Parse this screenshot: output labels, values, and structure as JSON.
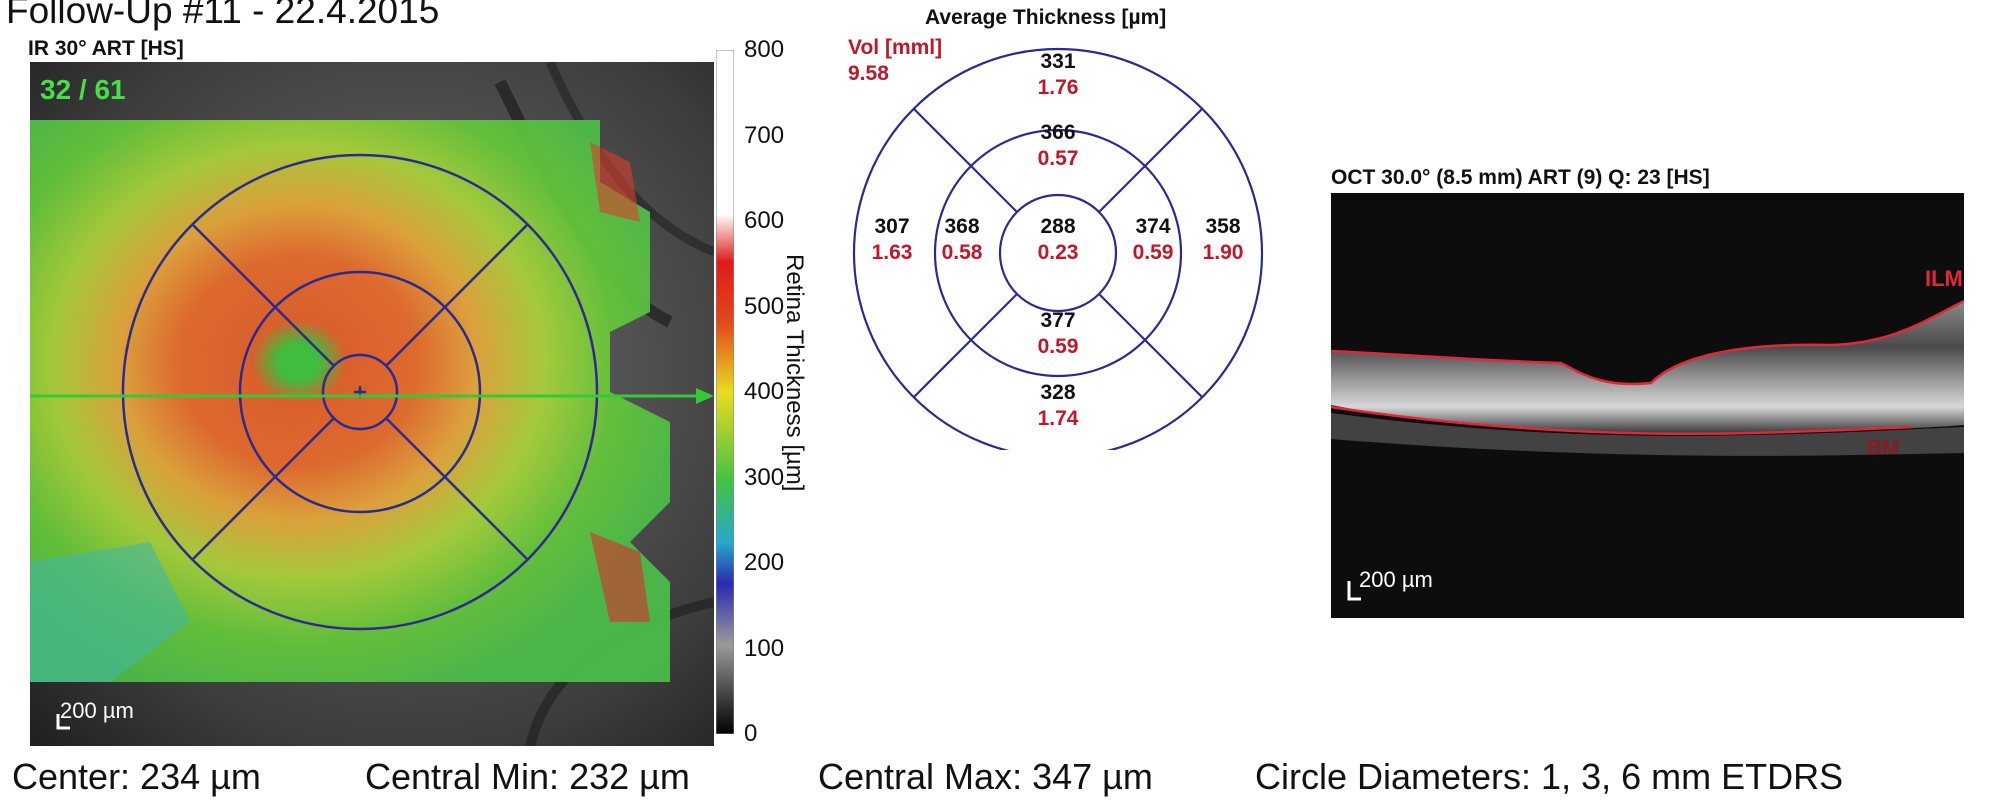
{
  "header": {
    "title": "Follow-Up #11 - 22.4.2015",
    "ir_label": "IR 30° ART [HS]",
    "scan_counter": "32 / 61",
    "ir_scale_bar": "200 µm"
  },
  "colorbar": {
    "axis_label": "Retina Thickness [µm]",
    "ticks": [
      "800",
      "700",
      "600",
      "500",
      "400",
      "300",
      "200",
      "100",
      "0"
    ],
    "range": [
      0,
      800
    ]
  },
  "etdrs": {
    "title": "Average Thickness [µm]",
    "vol_label": "Vol [mml]",
    "vol_value": "9.58",
    "sectors": {
      "center": {
        "thickness": "288",
        "volume": "0.23"
      },
      "inner_superior": {
        "thickness": "366",
        "volume": "0.57"
      },
      "inner_nasal": {
        "thickness": "374",
        "volume": "0.59"
      },
      "inner_inferior": {
        "thickness": "377",
        "volume": "0.59"
      },
      "inner_temporal": {
        "thickness": "368",
        "volume": "0.58"
      },
      "outer_superior": {
        "thickness": "331",
        "volume": "1.76"
      },
      "outer_nasal": {
        "thickness": "358",
        "volume": "1.90"
      },
      "outer_inferior": {
        "thickness": "328",
        "volume": "1.74"
      },
      "outer_temporal": {
        "thickness": "307",
        "volume": "1.63"
      }
    }
  },
  "oct": {
    "label": "OCT 30.0° (8.5 mm) ART (9) Q: 23 [HS]",
    "ilm_label": "ILM",
    "bm_label": "BM",
    "scale_bar": "200 µm"
  },
  "footer": {
    "center": "Center: 234 µm",
    "central_min": "Central Min: 232 µm",
    "central_max": "Central Max: 347 µm",
    "circle_diameters": "Circle Diameters:  1, 3, 6 mm ETDRS"
  },
  "colors": {
    "etdrs_grid": "#2b2b8f",
    "volume_text": "#c0172b",
    "scan_line": "#37c837",
    "segmentation": "#e0283a"
  }
}
